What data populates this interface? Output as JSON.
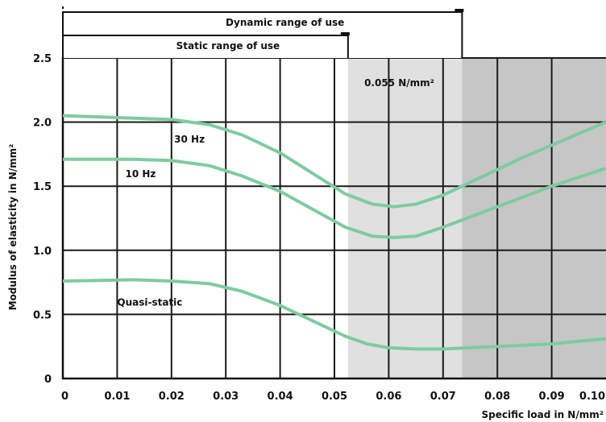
{
  "chart_data": {
    "type": "line",
    "title": "",
    "xlabel": "Specific load in N/mm²",
    "ylabel": "Modulus of elasticity in N/mm²",
    "xlim": [
      0,
      0.1
    ],
    "ylim": [
      0,
      2.5
    ],
    "x_ticks": [
      {
        "value": 0,
        "label": "0"
      },
      {
        "value": 0.01,
        "label": "0.01"
      },
      {
        "value": 0.02,
        "label": "0.02"
      },
      {
        "value": 0.03,
        "label": "0.03"
      },
      {
        "value": 0.04,
        "label": "0.04"
      },
      {
        "value": 0.05,
        "label": "0.05"
      },
      {
        "value": 0.06,
        "label": "0.06"
      },
      {
        "value": 0.07,
        "label": "0.07"
      },
      {
        "value": 0.08,
        "label": "0.08"
      },
      {
        "value": 0.09,
        "label": "0.09"
      },
      {
        "value": 0.1,
        "label": "0.10"
      }
    ],
    "y_ticks": [
      {
        "value": 0,
        "label": "0"
      },
      {
        "value": 0.5,
        "label": "0.5"
      },
      {
        "value": 1.0,
        "label": "1.0"
      },
      {
        "value": 1.5,
        "label": "1.5"
      },
      {
        "value": 2.0,
        "label": "2.0"
      },
      {
        "value": 2.5,
        "label": "2.5"
      }
    ],
    "grid": true,
    "shaded_regions": [
      {
        "x_start": 0.0525,
        "x_end": 0.0735,
        "color": "#e0e0e0"
      },
      {
        "x_start": 0.0735,
        "x_end": 0.1,
        "color": "#c6c6c6"
      }
    ],
    "series": [
      {
        "name": "30 Hz",
        "color": "#7ecba1",
        "label_at": [
          0.0205,
          1.84
        ],
        "x": [
          0,
          0.013,
          0.02,
          0.027,
          0.033,
          0.04,
          0.046,
          0.052,
          0.057,
          0.061,
          0.065,
          0.07,
          0.075,
          0.08,
          0.085,
          0.09,
          0.095,
          0.1
        ],
        "y": [
          2.05,
          2.03,
          2.02,
          1.98,
          1.9,
          1.76,
          1.6,
          1.44,
          1.36,
          1.34,
          1.36,
          1.43,
          1.53,
          1.63,
          1.73,
          1.82,
          1.91,
          2.0
        ]
      },
      {
        "name": "10 Hz",
        "color": "#7ecba1",
        "label_at": [
          0.0115,
          1.57
        ],
        "x": [
          0,
          0.013,
          0.02,
          0.027,
          0.033,
          0.04,
          0.046,
          0.052,
          0.057,
          0.061,
          0.065,
          0.07,
          0.075,
          0.08,
          0.085,
          0.09,
          0.095,
          0.1
        ],
        "y": [
          1.71,
          1.71,
          1.7,
          1.66,
          1.58,
          1.46,
          1.32,
          1.18,
          1.11,
          1.1,
          1.11,
          1.18,
          1.26,
          1.34,
          1.42,
          1.5,
          1.57,
          1.64
        ]
      },
      {
        "name": "Quasi-static",
        "color": "#7ecba1",
        "label_at": [
          0.01,
          0.57
        ],
        "x": [
          0,
          0.013,
          0.02,
          0.027,
          0.033,
          0.04,
          0.046,
          0.052,
          0.056,
          0.06,
          0.065,
          0.07,
          0.075,
          0.08,
          0.085,
          0.09,
          0.095,
          0.1
        ],
        "y": [
          0.76,
          0.77,
          0.76,
          0.74,
          0.68,
          0.57,
          0.45,
          0.33,
          0.27,
          0.24,
          0.23,
          0.23,
          0.24,
          0.25,
          0.26,
          0.27,
          0.29,
          0.31
        ]
      }
    ],
    "annotations": [
      {
        "text": "0.055 N/mm²",
        "x": 0.0555,
        "y": 2.28
      }
    ],
    "ranges": [
      {
        "label": "Dynamic range of use",
        "x_start": 0,
        "x_end": 0.0735,
        "level": 2
      },
      {
        "label": "Static range of use",
        "x_start": 0,
        "x_end": 0.0525,
        "level": 1
      }
    ]
  }
}
